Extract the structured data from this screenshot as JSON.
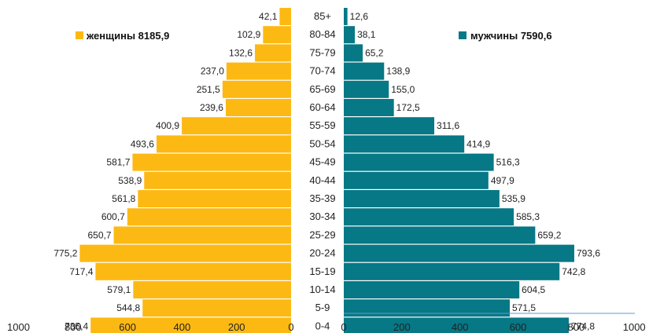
{
  "colors": {
    "women": "#FDB913",
    "men": "#077885",
    "baseline": "#5b9bd5"
  },
  "chart_data": {
    "type": "bar",
    "orientation": "horizontal",
    "categories": [
      "85+",
      "80-84",
      "75-79",
      "70-74",
      "65-69",
      "60-64",
      "55-59",
      "50-54",
      "45-49",
      "40-44",
      "35-39",
      "30-34",
      "25-29",
      "20-24",
      "15-19",
      "10-14",
      "5-9",
      "0-4"
    ],
    "series": [
      {
        "name": "женщины 8185,9",
        "values": [
          42.1,
          102.9,
          132.6,
          237.0,
          251.5,
          239.6,
          400.9,
          493.6,
          581.7,
          538.9,
          561.8,
          600.7,
          650.7,
          775.2,
          717.4,
          579.1,
          544.8,
          735.4
        ],
        "labels": [
          "42,1",
          "102,9",
          "132,6",
          "237,0",
          "251,5",
          "239,6",
          "400,9",
          "493,6",
          "581,7",
          "538,9",
          "561,8",
          "600,7",
          "650,7",
          "775,2",
          "717,4",
          "579,1",
          "544,8",
          "735,4"
        ]
      },
      {
        "name": "мужчины 7590,6",
        "values": [
          12.6,
          38.1,
          65.2,
          138.9,
          155.0,
          172.5,
          311.6,
          414.9,
          516.3,
          497.9,
          535.9,
          585.3,
          659.2,
          793.6,
          742.8,
          604.5,
          571.5,
          774.8
        ],
        "labels": [
          "12,6",
          "38,1",
          "65,2",
          "138,9",
          "155,0",
          "172,5",
          "311,6",
          "414,9",
          "516,3",
          "497,9",
          "535,9",
          "585,3",
          "659,2",
          "793,6",
          "742,8",
          "604,5",
          "571,5",
          "774,8"
        ]
      }
    ],
    "left_axis_ticks": [
      "1000",
      "800",
      "600",
      "400",
      "200",
      "0"
    ],
    "right_axis_ticks": [
      "0",
      "200",
      "400",
      "600",
      "800",
      "1000"
    ],
    "xlim": [
      0,
      1000
    ],
    "legend": {
      "women": "женщины 8185,9",
      "men": "мужчины 7590,6"
    }
  }
}
